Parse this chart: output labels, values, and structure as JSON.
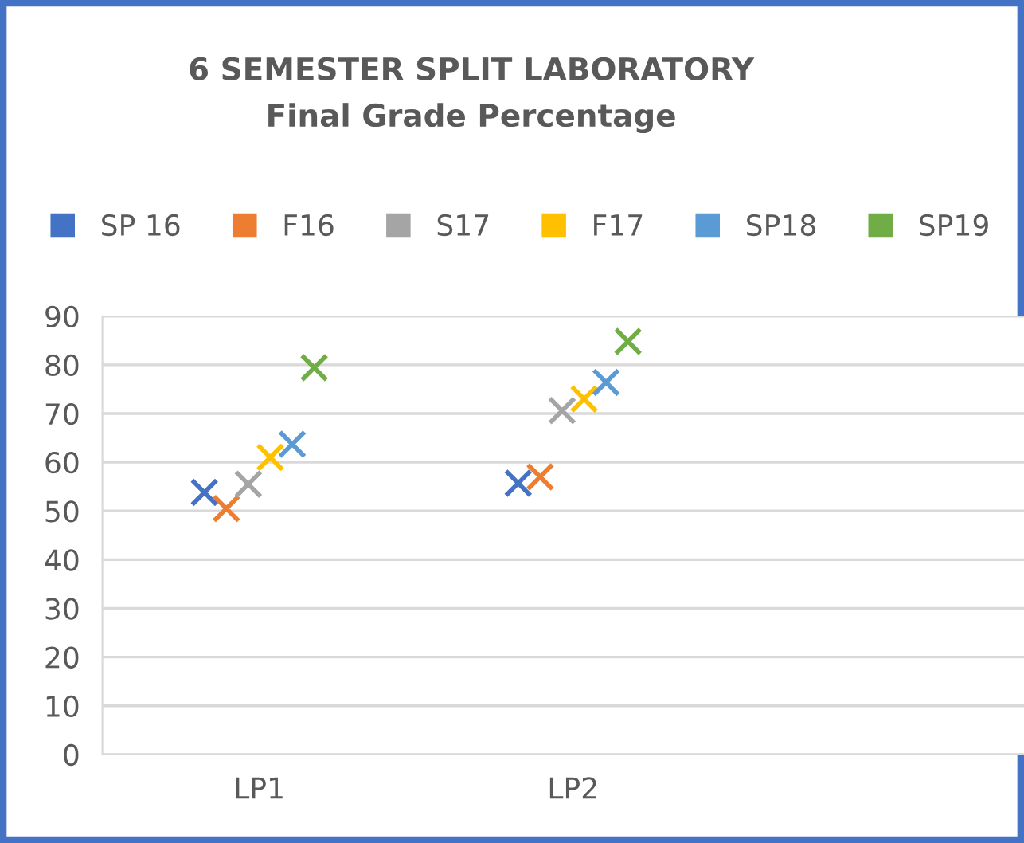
{
  "chart_data": {
    "type": "scatter",
    "title": "6 SEMESTER SPLIT LABORATORY",
    "subtitle": "Final Grade Percentage",
    "categories": [
      "LP1",
      "LP2"
    ],
    "series": [
      {
        "name": "SP 16",
        "color": "#4472c4",
        "values": [
          53.8,
          55.7
        ]
      },
      {
        "name": "F16",
        "color": "#ed7d31",
        "values": [
          50.5,
          57
        ]
      },
      {
        "name": "S17",
        "color": "#a5a5a5",
        "values": [
          55.5,
          70.6
        ]
      },
      {
        "name": "F17",
        "color": "#ffc000",
        "values": [
          61,
          73
        ]
      },
      {
        "name": "SP18",
        "color": "#5b9bd5",
        "values": [
          63.7,
          76.4
        ]
      },
      {
        "name": "SP19",
        "color": "#70ad47",
        "values": [
          79.4,
          84.8
        ]
      }
    ],
    "ylim": [
      0,
      90
    ],
    "yticks": [
      0,
      10,
      20,
      30,
      40,
      50,
      60,
      70,
      80,
      90
    ],
    "grid": "y",
    "legend": "top",
    "marker": "cross"
  }
}
